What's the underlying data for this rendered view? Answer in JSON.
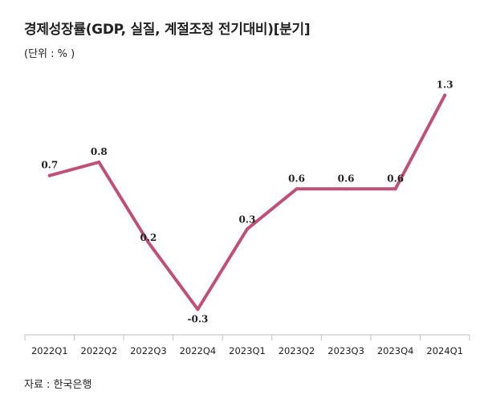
{
  "header": {
    "title": "경제성장률(GDP, 실질, 계절조정 전기대비)[분기]",
    "unit": "(단위 : % )"
  },
  "footer": {
    "source": "자료 : 한국은행"
  },
  "colors": {
    "line": "#c05078",
    "axis": "#bfbfbf"
  },
  "chart_data": {
    "type": "line",
    "title": "경제성장률(GDP, 실질, 계절조정 전기대비)[분기]",
    "categories": [
      "2022Q1",
      "2022Q2",
      "2022Q3",
      "2022Q4",
      "2023Q1",
      "2023Q2",
      "2023Q3",
      "2023Q4",
      "2024Q1"
    ],
    "series": [
      {
        "values": [
          0.7,
          0.8,
          0.2,
          -0.3,
          0.3,
          0.6,
          0.6,
          0.6,
          1.3
        ]
      }
    ],
    "data_labels": [
      "0.7",
      "0.8",
      "0.2",
      "-0.3",
      "0.3",
      "0.6",
      "0.6",
      "0.6",
      "1.3"
    ],
    "ylim": [
      -0.4,
      1.4
    ],
    "grid": false,
    "legend": "none"
  }
}
